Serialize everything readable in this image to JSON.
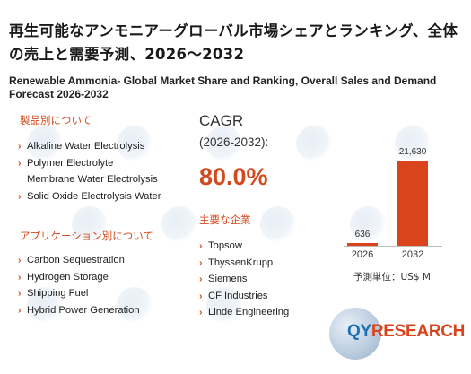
{
  "title_jp": "再生可能なアンモニアーグローバル市場シェアとランキング、全体の売上と需要予測、2026〜2032",
  "title_en": "Renewable Ammonia- Global Market Share and Ranking, Overall Sales and Demand Forecast 2026-2032",
  "segments_by_type": {
    "heading": "製品別について",
    "items": [
      "Alkaline Water Electrolysis",
      "Polymer Electrolyte",
      "Membrane Water Electrolysis",
      "Solid Oxide Electrolysis Water"
    ]
  },
  "segments_by_application": {
    "heading": "アプリケーション別について",
    "items": [
      "Carbon Sequestration",
      "Hydrogen Storage",
      "Shipping Fuel",
      "Hybrid Power Generation"
    ]
  },
  "cagr": {
    "label": "CAGR",
    "period": "(2026-2032):",
    "value": "80.0%"
  },
  "key_players": {
    "heading": "主要な企業",
    "items": [
      "Topsow",
      "ThyssenKrupp",
      "Siemens",
      "CF Industries",
      "Linde Engineering"
    ]
  },
  "chart_data": {
    "type": "bar",
    "categories": [
      "2026",
      "2032"
    ],
    "values": [
      636,
      21630
    ],
    "value_labels": [
      "636",
      "21,630"
    ],
    "unit_label": "予測単位：US$ M",
    "color": "#d9441c"
  },
  "logo": {
    "qy": "QY",
    "rest": "RESEARCH"
  },
  "colors": {
    "accent": "#d24a1e",
    "bar": "#d9441c",
    "logo_blue": "#1f6fb4"
  }
}
